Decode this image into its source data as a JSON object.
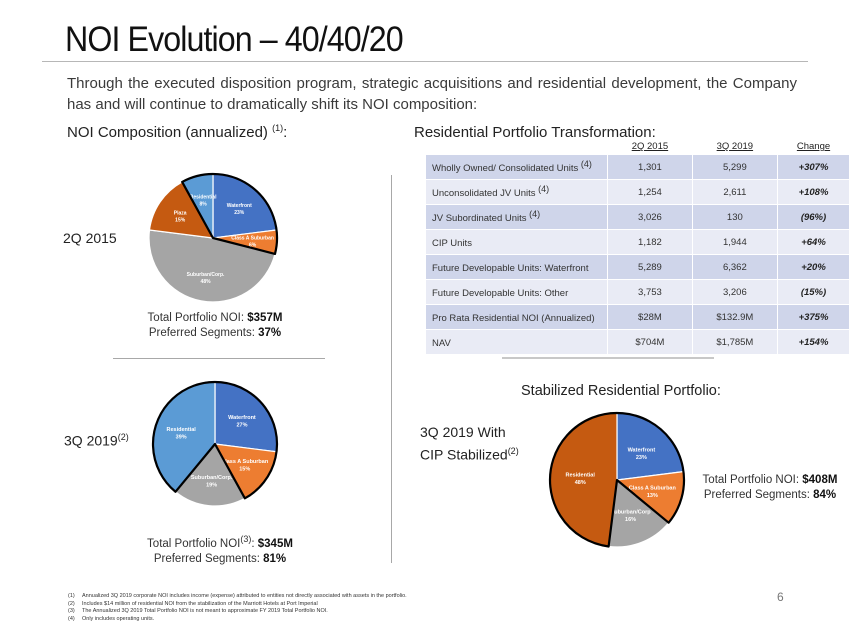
{
  "title": "NOI Evolution – 40/40/20",
  "intro": "Through the executed disposition program, strategic acquisitions and residential development, the Company has and will continue to dramatically shift its NOI composition:",
  "left_section": {
    "heading": "NOI Composition (annualized)",
    "heading_sup": "(1)",
    "heading_suffix": ":"
  },
  "right_section": {
    "heading": "Residential Portfolio Transformation:",
    "stabilized_heading": "Stabilized Residential Portfolio:"
  },
  "table": {
    "headers": [
      "",
      "2Q 2015",
      "3Q 2019",
      "Change"
    ],
    "rows": [
      {
        "label": "Wholly Owned/ Consolidated Units",
        "sup": "(4)",
        "q2015": "1,301",
        "q2019": "5,299",
        "change": "+307%"
      },
      {
        "label": "Unconsolidated JV Units",
        "sup": "(4)",
        "q2015": "1,254",
        "q2019": "2,611",
        "change": "+108%"
      },
      {
        "label": "JV Subordinated Units",
        "sup": "(4)",
        "q2015": "3,026",
        "q2019": "130",
        "change": "(96%)"
      },
      {
        "label": "CIP Units",
        "sup": "",
        "q2015": "1,182",
        "q2019": "1,944",
        "change": "+64%"
      },
      {
        "label": "Future Developable Units: Waterfront",
        "sup": "",
        "q2015": "5,289",
        "q2019": "6,362",
        "change": "+20%"
      },
      {
        "label": "Future Developable Units: Other",
        "sup": "",
        "q2015": "3,753",
        "q2019": "3,206",
        "change": "(15%)"
      },
      {
        "label": "Pro Rata Residential NOI (Annualized)",
        "sup": "",
        "q2015": "$28M",
        "q2019": "$132.9M",
        "change": "+375%"
      },
      {
        "label": "NAV",
        "sup": "",
        "q2015": "$704M",
        "q2019": "$1,785M",
        "change": "+154%"
      }
    ]
  },
  "pies": [
    {
      "period": "2Q 2015",
      "period_sup": "",
      "total_label": "Total Portfolio NOI",
      "total_sup": "",
      "total_value": "$357M",
      "preferred_label": "Preferred Segments:",
      "preferred_value": "37%"
    },
    {
      "period": "3Q 2019",
      "period_sup": "(2)",
      "total_label": "Total Portfolio NOI",
      "total_sup": "(3)",
      "total_value": "$345M",
      "preferred_label": "Preferred Segments:",
      "preferred_value": "81%"
    },
    {
      "period": "3Q 2019 With",
      "period_line2": "CIP Stabilized",
      "period_sup": "(2)",
      "total_label": "Total Portfolio NOI",
      "total_sup": "",
      "total_value": "$408M",
      "preferred_label": "Preferred Segments:",
      "preferred_value": "84%"
    }
  ],
  "chart_data": [
    {
      "type": "pie",
      "title": "2Q 2015",
      "slices": [
        {
          "label": "Waterfront",
          "value": 23,
          "color": "#4472c4",
          "preferred": true
        },
        {
          "label": "Class A Suburban",
          "value": 6,
          "color": "#ed7d31",
          "preferred": true
        },
        {
          "label": "Suburban/Corp.",
          "value": 48,
          "color": "#a5a5a5",
          "preferred": false
        },
        {
          "label": "Plaza",
          "value": 15,
          "color": "#c55a11",
          "preferred": false
        },
        {
          "label": "Residential",
          "value": 8,
          "color": "#5b9bd5",
          "preferred": true
        }
      ]
    },
    {
      "type": "pie",
      "title": "3Q 2019",
      "slices": [
        {
          "label": "Waterfront",
          "value": 27,
          "color": "#4472c4",
          "preferred": true
        },
        {
          "label": "Class A Suburban",
          "value": 15,
          "color": "#ed7d31",
          "preferred": true
        },
        {
          "label": "Suburban/Corp.",
          "value": 19,
          "color": "#a5a5a5",
          "preferred": false
        },
        {
          "label": "Residential",
          "value": 39,
          "color": "#5b9bd5",
          "preferred": true
        }
      ]
    },
    {
      "type": "pie",
      "title": "3Q 2019 With CIP Stabilized",
      "slices": [
        {
          "label": "Waterfront",
          "value": 23,
          "color": "#4472c4",
          "preferred": true
        },
        {
          "label": "Class A Suburban",
          "value": 13,
          "color": "#ed7d31",
          "preferred": true
        },
        {
          "label": "Suburban/Corp",
          "value": 16,
          "color": "#a5a5a5",
          "preferred": false
        },
        {
          "label": "Residential",
          "value": 48,
          "color": "#c55a11",
          "preferred": true
        }
      ]
    }
  ],
  "footnotes": [
    {
      "n": "(1)",
      "text": "Annualized 3Q 2019 corporate NOI includes income (expense) attributed to entities not directly associated with assets in the portfolio."
    },
    {
      "n": "(2)",
      "text": "Includes $14 million of residential NOI from the stabilization of the Marriott Hotels at Port Imperial"
    },
    {
      "n": "(3)",
      "text": "The Annualized 3Q 2019 Total Portfolio NOI is not meant to approximate FY 2019 Total Portfolio NOI."
    },
    {
      "n": "(4)",
      "text": "Only includes operating units."
    }
  ],
  "page_number": "6"
}
